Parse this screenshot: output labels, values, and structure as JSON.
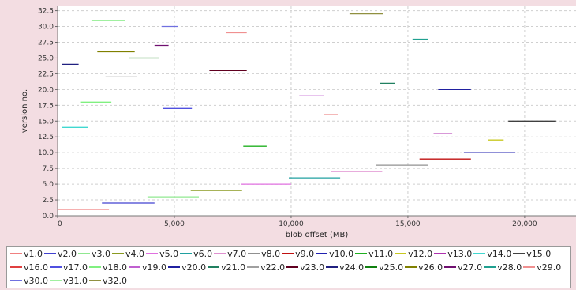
{
  "chart_data": {
    "type": "line",
    "xlabel": "blob offset (MB)",
    "ylabel": "version no.",
    "xlim": [
      0,
      22200
    ],
    "ylim": [
      0,
      33.2
    ],
    "x_ticks": [
      0,
      5000,
      10000,
      15000,
      20000
    ],
    "x_tick_labels": [
      "0",
      "5,000",
      "10,000",
      "15,000",
      "20,000"
    ],
    "y_ticks": [
      0,
      2.5,
      5,
      7.5,
      10,
      12.5,
      15,
      17.5,
      20,
      22.5,
      25,
      27.5,
      30,
      32.5
    ],
    "y_tick_labels": [
      "0.0",
      "2.5",
      "5.0",
      "7.5",
      "10.0",
      "12.5",
      "15.0",
      "17.5",
      "20.0",
      "22.5",
      "25.0",
      "27.5",
      "30.0",
      "32.5"
    ],
    "grid": true,
    "legend_position": "bottom",
    "series": [
      {
        "name": "v1.0",
        "color": "#f08080",
        "x": [
          0,
          2200
        ],
        "y": [
          1,
          1
        ]
      },
      {
        "name": "v2.0",
        "color": "#4040d0",
        "x": [
          1900,
          4150
        ],
        "y": [
          2,
          2
        ]
      },
      {
        "name": "v3.0",
        "color": "#90e890",
        "x": [
          3850,
          6050
        ],
        "y": [
          3,
          3
        ]
      },
      {
        "name": "v4.0",
        "color": "#8a9a20",
        "x": [
          5700,
          7900
        ],
        "y": [
          4,
          4
        ]
      },
      {
        "name": "v5.0",
        "color": "#e070e0",
        "x": [
          7850,
          10000
        ],
        "y": [
          5,
          5
        ]
      },
      {
        "name": "v6.0",
        "color": "#20a0a0",
        "x": [
          9900,
          12100
        ],
        "y": [
          6,
          6
        ]
      },
      {
        "name": "v7.0",
        "color": "#e090d0",
        "x": [
          11700,
          13900
        ],
        "y": [
          7,
          7
        ]
      },
      {
        "name": "v8.0",
        "color": "#909090",
        "x": [
          13650,
          15850
        ],
        "y": [
          8,
          8
        ]
      },
      {
        "name": "v9.0",
        "color": "#c01010",
        "x": [
          15500,
          17700
        ],
        "y": [
          9,
          9
        ]
      },
      {
        "name": "v10.0",
        "color": "#2020b0",
        "x": [
          17400,
          19600
        ],
        "y": [
          10,
          10
        ]
      },
      {
        "name": "v11.0",
        "color": "#20b020",
        "x": [
          7950,
          8950
        ],
        "y": [
          11,
          11
        ]
      },
      {
        "name": "v12.0",
        "color": "#c8c820",
        "x": [
          18450,
          19100
        ],
        "y": [
          12,
          12
        ]
      },
      {
        "name": "v13.0",
        "color": "#b030b0",
        "x": [
          16100,
          16900
        ],
        "y": [
          13,
          13
        ]
      },
      {
        "name": "v14.0",
        "color": "#40d8d0",
        "x": [
          200,
          1300
        ],
        "y": [
          14,
          14
        ]
      },
      {
        "name": "v15.0",
        "color": "#404040",
        "x": [
          19300,
          21350
        ],
        "y": [
          15,
          15
        ]
      },
      {
        "name": "v16.0",
        "color": "#e04040",
        "x": [
          11400,
          12000
        ],
        "y": [
          16,
          16
        ]
      },
      {
        "name": "v17.0",
        "color": "#5050e0",
        "x": [
          4500,
          5750
        ],
        "y": [
          17,
          17
        ]
      },
      {
        "name": "v18.0",
        "color": "#80f080",
        "x": [
          1000,
          2300
        ],
        "y": [
          18,
          18
        ]
      },
      {
        "name": "v19.0",
        "color": "#c060d0",
        "x": [
          10350,
          11400
        ],
        "y": [
          19,
          19
        ]
      },
      {
        "name": "v20.0",
        "color": "#2020a0",
        "x": [
          16300,
          17700
        ],
        "y": [
          20,
          20
        ]
      },
      {
        "name": "v21.0",
        "color": "#208060",
        "x": [
          13800,
          14450
        ],
        "y": [
          21,
          21
        ]
      },
      {
        "name": "v22.0",
        "color": "#a0a0a0",
        "x": [
          2050,
          3400
        ],
        "y": [
          22,
          22
        ]
      },
      {
        "name": "v23.0",
        "color": "#600020",
        "x": [
          6500,
          8100
        ],
        "y": [
          23,
          23
        ]
      },
      {
        "name": "v24.0",
        "color": "#202080",
        "x": [
          200,
          900
        ],
        "y": [
          24,
          24
        ]
      },
      {
        "name": "v25.0",
        "color": "#108010",
        "x": [
          3050,
          4350
        ],
        "y": [
          25,
          25
        ]
      },
      {
        "name": "v26.0",
        "color": "#808000",
        "x": [
          1700,
          3300
        ],
        "y": [
          26,
          26
        ]
      },
      {
        "name": "v27.0",
        "color": "#701070",
        "x": [
          4150,
          4750
        ],
        "y": [
          27,
          27
        ]
      },
      {
        "name": "v28.0",
        "color": "#20a090",
        "x": [
          15200,
          15850
        ],
        "y": [
          28,
          28
        ]
      },
      {
        "name": "v29.0",
        "color": "#f09090",
        "x": [
          7200,
          8100
        ],
        "y": [
          29,
          29
        ]
      },
      {
        "name": "v30.0",
        "color": "#7070e0",
        "x": [
          4450,
          5150
        ],
        "y": [
          30,
          30
        ]
      },
      {
        "name": "v31.0",
        "color": "#a0f0a0",
        "x": [
          1450,
          2900
        ],
        "y": [
          31,
          31
        ]
      },
      {
        "name": "v32.0",
        "color": "#909040",
        "x": [
          12500,
          13950
        ],
        "y": [
          32,
          32
        ]
      }
    ]
  }
}
